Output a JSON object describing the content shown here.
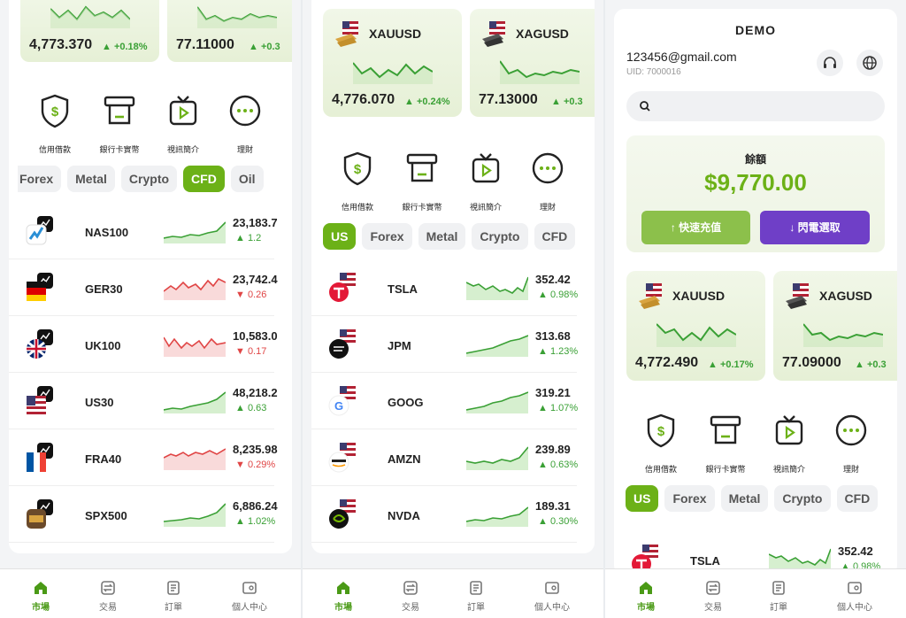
{
  "features": [
    "信用借款",
    "銀行卡實幣",
    "視訊簡介",
    "理財"
  ],
  "nav": [
    "市場",
    "交易",
    "訂單",
    "個人中心"
  ],
  "colors": {
    "accent": "#6cb117",
    "up": "#3aa035",
    "down": "#e04545",
    "withdraw": "#6f3fc7",
    "deposit": "#8cc04b"
  },
  "panel1": {
    "tiles": [
      {
        "price": "4,773.370",
        "change": "▲ +0.18%"
      },
      {
        "price": "77.11000",
        "change": "▲ +0.3"
      }
    ],
    "tabs": [
      "Forex",
      "Metal",
      "Crypto",
      "CFD",
      "Oil"
    ],
    "active_tab": "CFD",
    "rows": [
      {
        "symbol": "NAS100",
        "price": "23,183.7",
        "change": "▲ 1.2",
        "dir": "up"
      },
      {
        "symbol": "GER30",
        "price": "23,742.4",
        "change": "▼ 0.26",
        "dir": "down"
      },
      {
        "symbol": "UK100",
        "price": "10,583.0",
        "change": "▼ 0.17",
        "dir": "down"
      },
      {
        "symbol": "US30",
        "price": "48,218.2",
        "change": "▲ 0.63",
        "dir": "up"
      },
      {
        "symbol": "FRA40",
        "price": "8,235.98",
        "change": "▼ 0.29%",
        "dir": "down"
      },
      {
        "symbol": "SPX500",
        "price": "6,886.24",
        "change": "▲ 1.02%",
        "dir": "up"
      }
    ]
  },
  "panel2": {
    "tiles": [
      {
        "symbol": "XAUUSD",
        "price": "4,776.070",
        "change": "▲ +0.24%"
      },
      {
        "symbol": "XAGUSD",
        "price": "77.13000",
        "change": "▲ +0.3"
      }
    ],
    "tabs": [
      "US",
      "Forex",
      "Metal",
      "Crypto",
      "CFD"
    ],
    "active_tab": "US",
    "rows": [
      {
        "symbol": "TSLA",
        "price": "352.42",
        "change": "▲ 0.98%",
        "dir": "up"
      },
      {
        "symbol": "JPM",
        "price": "313.68",
        "change": "▲ 1.23%",
        "dir": "up"
      },
      {
        "symbol": "GOOG",
        "price": "319.21",
        "change": "▲ 1.07%",
        "dir": "up"
      },
      {
        "symbol": "AMZN",
        "price": "239.89",
        "change": "▲ 0.63%",
        "dir": "up"
      },
      {
        "symbol": "NVDA",
        "price": "189.31",
        "change": "▲ 0.30%",
        "dir": "up"
      }
    ]
  },
  "panel3": {
    "mode": "DEMO",
    "email": "123456@gmail.com",
    "uid": "UID: 7000016",
    "balance_label": "餘額",
    "balance": "$9,770.00",
    "deposit_label": "↑  快速充值",
    "withdraw_label": "↓  閃電選取",
    "tiles": [
      {
        "symbol": "XAUUSD",
        "price": "4,772.490",
        "change": "▲ +0.17%"
      },
      {
        "symbol": "XAGUSD",
        "price": "77.09000",
        "change": "▲ +0.3"
      }
    ],
    "tabs": [
      "US",
      "Forex",
      "Metal",
      "Crypto",
      "CFD"
    ],
    "active_tab": "US",
    "rows": [
      {
        "symbol": "TSLA",
        "price": "352.42",
        "change": "▲ 0.98%",
        "dir": "up"
      }
    ]
  }
}
